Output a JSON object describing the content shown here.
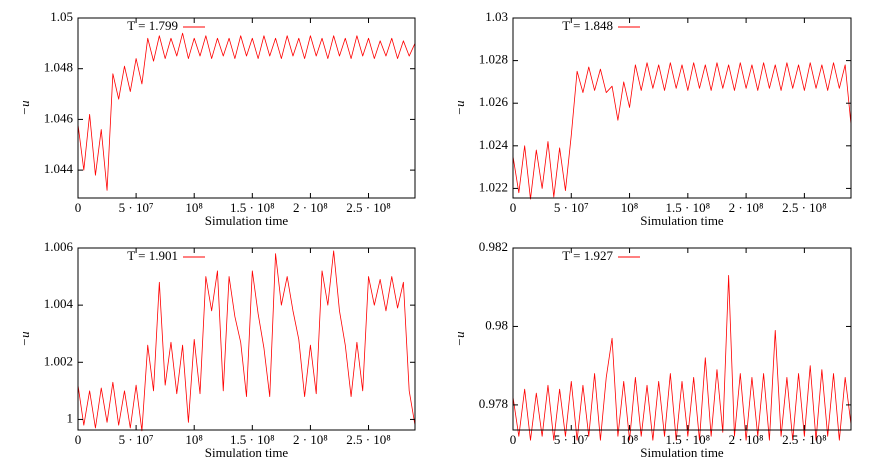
{
  "chart_data": [
    {
      "type": "line",
      "xlabel": "Simulation time",
      "ylabel": "−u",
      "xlim": [
        0,
        290000000.0
      ],
      "ylim": [
        1.0429,
        1.05
      ],
      "xticks": [
        0,
        {
          "value": 50000000.0,
          "label": "5 · 10⁷"
        },
        {
          "value": 100000000.0,
          "label": "10⁸"
        },
        {
          "value": 150000000.0,
          "label": "1.5 · 10⁸"
        },
        {
          "value": 200000000.0,
          "label": "2 · 10⁸"
        },
        {
          "value": 250000000.0,
          "label": "2.5 · 10⁸"
        }
      ],
      "yticks": [
        1.044,
        1.046,
        1.048,
        1.05
      ],
      "x": [
        0,
        5000000.0,
        10000000.0,
        15000000.0,
        20000000.0,
        25000000.0,
        30000000.0,
        35000000.0,
        40000000.0,
        45000000.0,
        50000000.0,
        55000000.0,
        60000000.0,
        65000000.0,
        70000000.0,
        75000000.0,
        80000000.0,
        85000000.0,
        90000000.0,
        95000000.0,
        100000000.0,
        105000000.0,
        110000000.0,
        115000000.0,
        120000000.0,
        125000000.0,
        130000000.0,
        135000000.0,
        140000000.0,
        145000000.0,
        150000000.0,
        155000000.0,
        160000000.0,
        165000000.0,
        170000000.0,
        175000000.0,
        180000000.0,
        185000000.0,
        190000000.0,
        195000000.0,
        200000000.0,
        205000000.0,
        210000000.0,
        215000000.0,
        220000000.0,
        225000000.0,
        230000000.0,
        235000000.0,
        240000000.0,
        245000000.0,
        250000000.0,
        255000000.0,
        260000000.0,
        265000000.0,
        270000000.0,
        275000000.0,
        280000000.0,
        285000000.0,
        290000000.0
      ],
      "series": [
        {
          "name": "T = 1.799",
          "color": "#ff0000",
          "values": [
            1.0458,
            1.044,
            1.0462,
            1.0438,
            1.0456,
            1.0432,
            1.0478,
            1.0468,
            1.0481,
            1.0471,
            1.0484,
            1.0474,
            1.0492,
            1.0483,
            1.0493,
            1.0484,
            1.0492,
            1.0485,
            1.0494,
            1.0484,
            1.0492,
            1.0485,
            1.0493,
            1.0484,
            1.0492,
            1.0485,
            1.0492,
            1.0484,
            1.0493,
            1.0485,
            1.0492,
            1.0484,
            1.0493,
            1.0485,
            1.0492,
            1.0484,
            1.0493,
            1.0485,
            1.0492,
            1.0484,
            1.0493,
            1.0485,
            1.0492,
            1.0484,
            1.0493,
            1.0485,
            1.0492,
            1.0484,
            1.0493,
            1.0485,
            1.0492,
            1.0484,
            1.0491,
            1.0485,
            1.0492,
            1.0484,
            1.0491,
            1.0485,
            1.049
          ]
        }
      ]
    },
    {
      "type": "line",
      "xlabel": "Simulation time",
      "ylabel": "−u",
      "xlim": [
        0,
        290000000.0
      ],
      "ylim": [
        1.02155,
        1.03
      ],
      "xticks": [
        0,
        {
          "value": 50000000.0,
          "label": "5 · 10⁷"
        },
        {
          "value": 100000000.0,
          "label": "10⁸"
        },
        {
          "value": 150000000.0,
          "label": "1.5 · 10⁸"
        },
        {
          "value": 200000000.0,
          "label": "2 · 10⁸"
        },
        {
          "value": 250000000.0,
          "label": "2.5 · 10⁸"
        }
      ],
      "yticks": [
        1.022,
        1.024,
        1.026,
        1.028,
        1.03
      ],
      "x": [
        0,
        5000000.0,
        10000000.0,
        15000000.0,
        20000000.0,
        25000000.0,
        30000000.0,
        35000000.0,
        40000000.0,
        45000000.0,
        50000000.0,
        55000000.0,
        60000000.0,
        65000000.0,
        70000000.0,
        75000000.0,
        80000000.0,
        85000000.0,
        90000000.0,
        95000000.0,
        100000000.0,
        105000000.0,
        110000000.0,
        115000000.0,
        120000000.0,
        125000000.0,
        130000000.0,
        135000000.0,
        140000000.0,
        145000000.0,
        150000000.0,
        155000000.0,
        160000000.0,
        165000000.0,
        170000000.0,
        175000000.0,
        180000000.0,
        185000000.0,
        190000000.0,
        195000000.0,
        200000000.0,
        205000000.0,
        210000000.0,
        215000000.0,
        220000000.0,
        225000000.0,
        230000000.0,
        235000000.0,
        240000000.0,
        245000000.0,
        250000000.0,
        255000000.0,
        260000000.0,
        265000000.0,
        270000000.0,
        275000000.0,
        280000000.0,
        285000000.0,
        290000000.0
      ],
      "series": [
        {
          "name": "T = 1.848",
          "color": "#ff0000",
          "values": [
            1.0235,
            1.0218,
            1.024,
            1.0215,
            1.0238,
            1.022,
            1.0242,
            1.0216,
            1.0239,
            1.0219,
            1.0245,
            1.0275,
            1.0265,
            1.0277,
            1.0266,
            1.0276,
            1.0265,
            1.0268,
            1.0252,
            1.027,
            1.0258,
            1.0278,
            1.0266,
            1.0279,
            1.0267,
            1.0278,
            1.0266,
            1.0279,
            1.0267,
            1.0278,
            1.0266,
            1.0279,
            1.0267,
            1.0278,
            1.0266,
            1.0279,
            1.0267,
            1.0278,
            1.0266,
            1.0279,
            1.0267,
            1.0278,
            1.0266,
            1.0279,
            1.0267,
            1.0278,
            1.0266,
            1.0279,
            1.0267,
            1.0278,
            1.0266,
            1.0279,
            1.0267,
            1.0278,
            1.0266,
            1.0279,
            1.0267,
            1.0278,
            1.025
          ]
        }
      ]
    },
    {
      "type": "line",
      "xlabel": "Simulation time",
      "ylabel": "−u",
      "xlim": [
        0,
        290000000.0
      ],
      "ylim": [
        0.99963,
        1.006
      ],
      "xticks": [
        0,
        {
          "value": 50000000.0,
          "label": "5 · 10⁷"
        },
        {
          "value": 100000000.0,
          "label": "10⁸"
        },
        {
          "value": 150000000.0,
          "label": "1.5 · 10⁸"
        },
        {
          "value": 200000000.0,
          "label": "2 · 10⁸"
        },
        {
          "value": 250000000.0,
          "label": "2.5 · 10⁸"
        }
      ],
      "yticks": [
        1,
        1.002,
        1.004,
        1.006
      ],
      "x": [
        0,
        5000000.0,
        10000000.0,
        15000000.0,
        20000000.0,
        25000000.0,
        30000000.0,
        35000000.0,
        40000000.0,
        45000000.0,
        50000000.0,
        55000000.0,
        60000000.0,
        65000000.0,
        70000000.0,
        75000000.0,
        80000000.0,
        85000000.0,
        90000000.0,
        95000000.0,
        100000000.0,
        105000000.0,
        110000000.0,
        115000000.0,
        120000000.0,
        125000000.0,
        130000000.0,
        135000000.0,
        140000000.0,
        145000000.0,
        150000000.0,
        155000000.0,
        160000000.0,
        165000000.0,
        170000000.0,
        175000000.0,
        180000000.0,
        185000000.0,
        190000000.0,
        195000000.0,
        200000000.0,
        205000000.0,
        210000000.0,
        215000000.0,
        220000000.0,
        225000000.0,
        230000000.0,
        235000000.0,
        240000000.0,
        245000000.0,
        250000000.0,
        255000000.0,
        260000000.0,
        265000000.0,
        270000000.0,
        275000000.0,
        280000000.0,
        285000000.0,
        290000000.0
      ],
      "series": [
        {
          "name": "T = 1.901",
          "color": "#ff0000",
          "values": [
            1.0012,
            0.9998,
            1.001,
            0.9997,
            1.0011,
            0.9999,
            1.0013,
            0.9998,
            1.001,
            0.9997,
            1.0012,
            0.9996,
            1.0026,
            1.001,
            1.0048,
            1.0012,
            1.0027,
            1.0009,
            1.0026,
            0.9999,
            1.0028,
            1.0009,
            1.005,
            1.0038,
            1.0052,
            1.001,
            1.005,
            1.0036,
            1.0027,
            1.0008,
            1.0052,
            1.0037,
            1.0025,
            1.0008,
            1.0058,
            1.004,
            1.005,
            1.0038,
            1.0028,
            1.0008,
            1.0026,
            1.0009,
            1.0052,
            1.004,
            1.0059,
            1.0038,
            1.0026,
            1.0008,
            1.0027,
            1.001,
            1.005,
            1.004,
            1.0049,
            1.0038,
            1.005,
            1.0039,
            1.0048,
            1.001,
            0.9998
          ]
        }
      ]
    },
    {
      "type": "line",
      "xlabel": "Simulation time",
      "ylabel": "−u",
      "xlim": [
        0,
        290000000.0
      ],
      "ylim": [
        0.97736,
        0.982
      ],
      "xticks": [
        0,
        {
          "value": 50000000.0,
          "label": "5 · 10⁷"
        },
        {
          "value": 100000000.0,
          "label": "10⁸"
        },
        {
          "value": 150000000.0,
          "label": "1.5 · 10⁸"
        },
        {
          "value": 200000000.0,
          "label": "2 · 10⁸"
        },
        {
          "value": 250000000.0,
          "label": "2.5 · 10⁸"
        }
      ],
      "yticks": [
        0.978,
        0.98,
        0.982
      ],
      "x": [
        0,
        5000000.0,
        10000000.0,
        15000000.0,
        20000000.0,
        25000000.0,
        30000000.0,
        35000000.0,
        40000000.0,
        45000000.0,
        50000000.0,
        55000000.0,
        60000000.0,
        65000000.0,
        70000000.0,
        75000000.0,
        80000000.0,
        85000000.0,
        90000000.0,
        95000000.0,
        100000000.0,
        105000000.0,
        110000000.0,
        115000000.0,
        120000000.0,
        125000000.0,
        130000000.0,
        135000000.0,
        140000000.0,
        145000000.0,
        150000000.0,
        155000000.0,
        160000000.0,
        165000000.0,
        170000000.0,
        175000000.0,
        180000000.0,
        185000000.0,
        190000000.0,
        195000000.0,
        200000000.0,
        205000000.0,
        210000000.0,
        215000000.0,
        220000000.0,
        225000000.0,
        230000000.0,
        235000000.0,
        240000000.0,
        245000000.0,
        250000000.0,
        255000000.0,
        260000000.0,
        265000000.0,
        270000000.0,
        275000000.0,
        280000000.0,
        285000000.0,
        290000000.0
      ],
      "series": [
        {
          "name": "T = 1.927",
          "color": "#ff0000",
          "values": [
            0.9782,
            0.9772,
            0.9784,
            0.9771,
            0.9783,
            0.9772,
            0.9785,
            0.9771,
            0.9784,
            0.9772,
            0.9786,
            0.9771,
            0.9785,
            0.9772,
            0.9788,
            0.9771,
            0.9787,
            0.9797,
            0.9772,
            0.9786,
            0.9771,
            0.9787,
            0.9772,
            0.9785,
            0.9771,
            0.9786,
            0.9772,
            0.9788,
            0.9771,
            0.9786,
            0.9772,
            0.9787,
            0.9771,
            0.9792,
            0.9772,
            0.9789,
            0.9773,
            0.9813,
            0.9772,
            0.9788,
            0.9771,
            0.9787,
            0.9772,
            0.9788,
            0.9771,
            0.9799,
            0.9772,
            0.9787,
            0.9771,
            0.9788,
            0.9772,
            0.979,
            0.9771,
            0.9789,
            0.9772,
            0.9788,
            0.9771,
            0.9787,
            0.9775
          ]
        }
      ]
    }
  ]
}
